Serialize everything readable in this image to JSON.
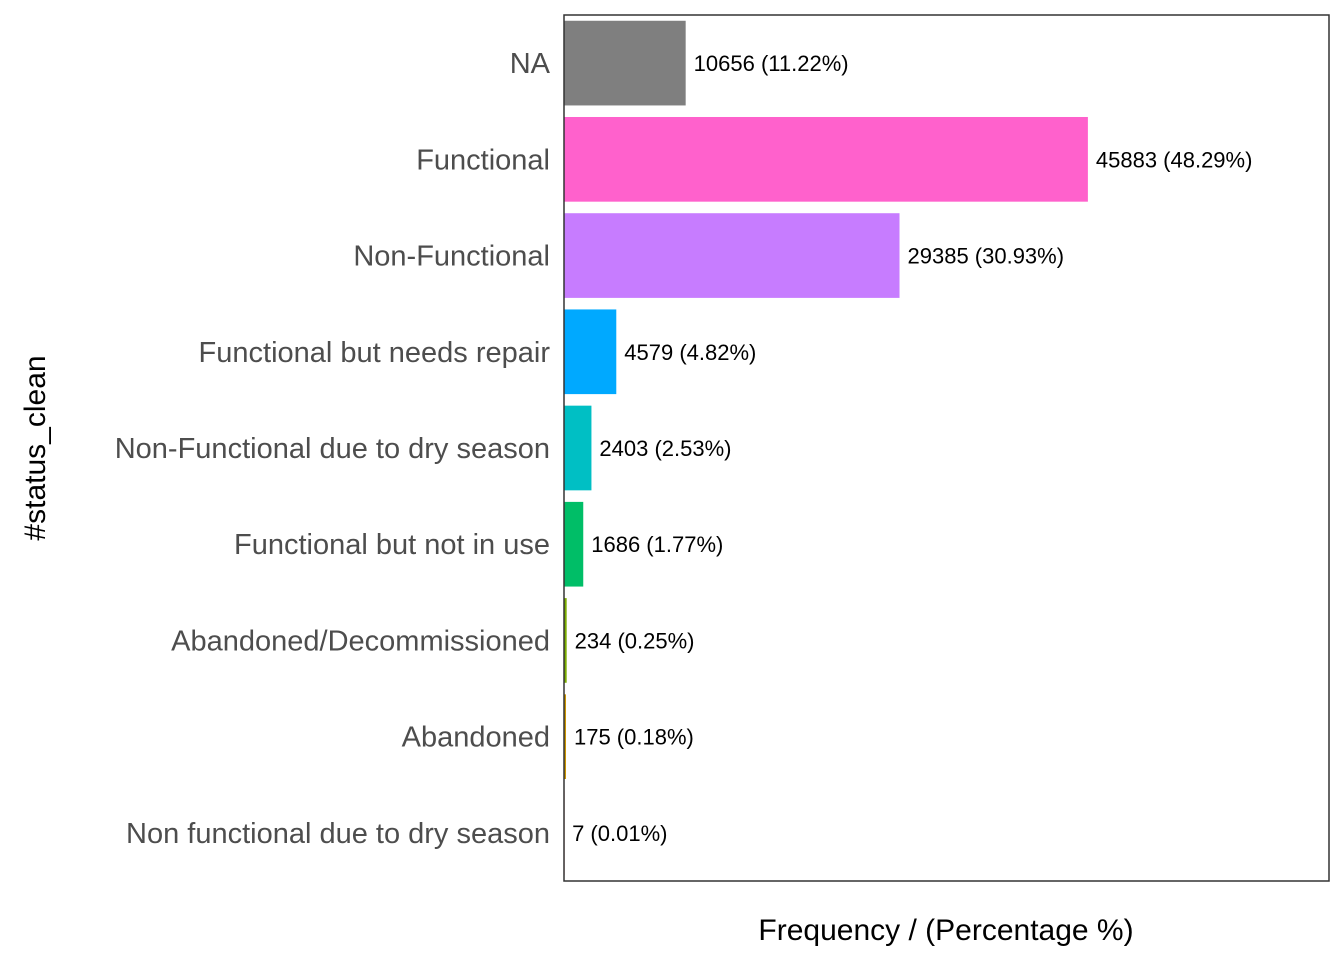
{
  "chart_data": {
    "type": "bar",
    "orientation": "horizontal",
    "title": "",
    "xlabel": "Frequency / (Percentage %)",
    "ylabel": "#status_clean",
    "categories": [
      "NA",
      "Functional",
      "Non-Functional",
      "Functional but needs repair",
      "Non-Functional due to dry season",
      "Functional but not in use",
      "Abandoned/Decommissioned",
      "Abandoned",
      "Non functional due to dry season"
    ],
    "values": [
      10656,
      45883,
      29385,
      4579,
      2403,
      1686,
      234,
      175,
      7
    ],
    "labels": [
      "10656 (11.22%)",
      "45883 (48.29%)",
      "29385 (30.93%)",
      "4579 (4.82%)",
      "2403 (2.53%)",
      "1686 (1.77%)",
      "234 (0.25%)",
      "175 (0.18%)",
      "7 (0.01%)"
    ],
    "colors": [
      "#7f7f7f",
      "#ff61cc",
      "#c77cff",
      "#00a9ff",
      "#00bfc4",
      "#00be67",
      "#7cae00",
      "#cd9600",
      "#f8766d"
    ],
    "xlim": [
      0,
      67000
    ],
    "grid": false,
    "legend": "none"
  }
}
